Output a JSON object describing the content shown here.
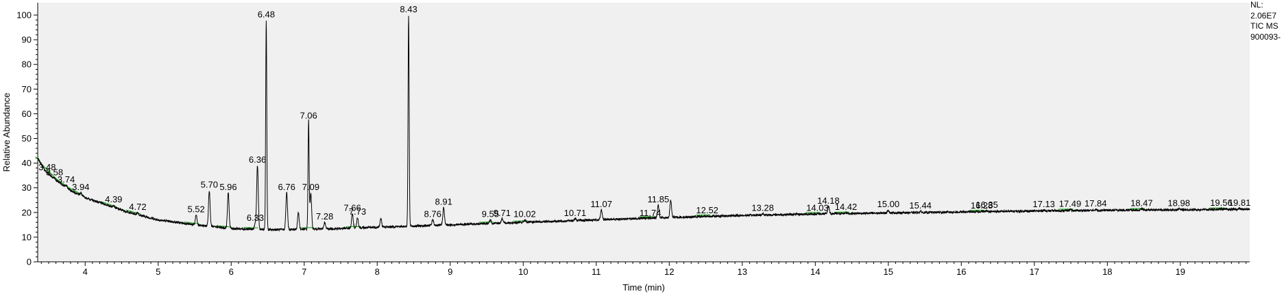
{
  "info_panel": {
    "line1": "NL:",
    "line2": "2.06E7",
    "line3": "TIC  MS",
    "line4": "900093-"
  },
  "colors": {
    "plot_background": "#f0f0f0",
    "trace": "#000000",
    "integration_marks": "#22aa22"
  },
  "chart_data": {
    "type": "line",
    "title": "",
    "xlabel": "Time (min)",
    "ylabel": "Relative Abundance",
    "xlim": [
      3.35,
      19.95
    ],
    "ylim": [
      0,
      105
    ],
    "x_ticks": [
      4,
      5,
      6,
      7,
      8,
      9,
      10,
      11,
      12,
      13,
      14,
      15,
      16,
      17,
      18,
      19
    ],
    "y_ticks": [
      0,
      10,
      20,
      30,
      40,
      50,
      60,
      70,
      80,
      90,
      100
    ],
    "grid": false,
    "baseline": [
      [
        3.35,
        42
      ],
      [
        3.45,
        37
      ],
      [
        3.6,
        33
      ],
      [
        3.8,
        29
      ],
      [
        4.0,
        26
      ],
      [
        4.3,
        23
      ],
      [
        4.6,
        20
      ],
      [
        5.0,
        17
      ],
      [
        5.5,
        15
      ],
      [
        6.0,
        13.5
      ],
      [
        6.5,
        13
      ],
      [
        7.0,
        13.2
      ],
      [
        7.5,
        13.5
      ],
      [
        8.0,
        14
      ],
      [
        8.3,
        14.3
      ],
      [
        8.6,
        14.6
      ],
      [
        9.0,
        15
      ],
      [
        9.5,
        15.5
      ],
      [
        10.0,
        16
      ],
      [
        11.0,
        17
      ],
      [
        12.0,
        18
      ],
      [
        13.0,
        18.8
      ],
      [
        14.0,
        19.4
      ],
      [
        15.0,
        19.8
      ],
      [
        16.0,
        20.2
      ],
      [
        17.0,
        20.6
      ],
      [
        18.0,
        20.9
      ],
      [
        19.0,
        21.1
      ],
      [
        19.95,
        21.3
      ]
    ],
    "peaks": [
      {
        "rt": 3.48,
        "label": "3.48",
        "height": 36
      },
      {
        "rt": 3.58,
        "label": "3.58",
        "height": 34
      },
      {
        "rt": 3.74,
        "label": "3.74",
        "height": 31
      },
      {
        "rt": 3.94,
        "label": "3.94",
        "height": 28
      },
      {
        "rt": 4.39,
        "label": "4.39",
        "height": 23
      },
      {
        "rt": 4.72,
        "label": "4.72",
        "height": 20
      },
      {
        "rt": 5.52,
        "label": "5.52",
        "height": 19
      },
      {
        "rt": 5.7,
        "label": "5.70",
        "height": 29
      },
      {
        "rt": 5.96,
        "label": "5.96",
        "height": 28
      },
      {
        "rt": 6.33,
        "label": "6.33",
        "height": 15.5
      },
      {
        "rt": 6.36,
        "label": "6.36",
        "height": 39
      },
      {
        "rt": 6.48,
        "label": "6.48",
        "height": 98
      },
      {
        "rt": 6.76,
        "label": "6.76",
        "height": 28
      },
      {
        "rt": 7.06,
        "label": "7.06",
        "height": 57
      },
      {
        "rt": 7.09,
        "label": "7.09",
        "height": 28
      },
      {
        "rt": 7.28,
        "label": "7.28",
        "height": 16
      },
      {
        "rt": 7.66,
        "label": "7.66",
        "height": 19.5
      },
      {
        "rt": 7.73,
        "label": "7.73",
        "height": 18
      },
      {
        "rt": 8.43,
        "label": "8.43",
        "height": 100
      },
      {
        "rt": 8.76,
        "label": "8.76",
        "height": 17
      },
      {
        "rt": 8.91,
        "label": "8.91",
        "height": 22
      },
      {
        "rt": 9.55,
        "label": "9.55",
        "height": 17
      },
      {
        "rt": 9.71,
        "label": "9.71",
        "height": 17.5
      },
      {
        "rt": 10.02,
        "label": "10.02",
        "height": 17
      },
      {
        "rt": 10.71,
        "label": "10.71",
        "height": 17.5
      },
      {
        "rt": 11.07,
        "label": "11.07",
        "height": 21
      },
      {
        "rt": 11.74,
        "label": "11.74",
        "height": 17.5
      },
      {
        "rt": 11.85,
        "label": "11.85",
        "height": 23
      },
      {
        "rt": 12.52,
        "label": "12.52",
        "height": 18.5
      },
      {
        "rt": 13.28,
        "label": "13.28",
        "height": 19.5
      },
      {
        "rt": 14.03,
        "label": "14.03",
        "height": 19.5
      },
      {
        "rt": 14.18,
        "label": "14.18",
        "height": 22.5
      },
      {
        "rt": 14.42,
        "label": "14.42",
        "height": 20
      },
      {
        "rt": 15.0,
        "label": "15.00",
        "height": 21
      },
      {
        "rt": 15.44,
        "label": "15.44",
        "height": 20.5
      },
      {
        "rt": 16.28,
        "label": "16.28",
        "height": 20.5
      },
      {
        "rt": 16.35,
        "label": "16.35",
        "height": 20.8
      },
      {
        "rt": 17.13,
        "label": "17.13",
        "height": 21
      },
      {
        "rt": 17.49,
        "label": "17.49",
        "height": 21.2
      },
      {
        "rt": 17.84,
        "label": "17.84",
        "height": 21.3
      },
      {
        "rt": 18.47,
        "label": "18.47",
        "height": 21.5
      },
      {
        "rt": 18.98,
        "label": "18.98",
        "height": 21.5
      },
      {
        "rt": 19.56,
        "label": "19.56",
        "height": 21.6
      },
      {
        "rt": 19.81,
        "label": "19.81",
        "height": 21.6
      }
    ],
    "unlabeled_peaks": [
      {
        "rt": 12.02,
        "height": 25
      },
      {
        "rt": 8.05,
        "height": 17.5
      },
      {
        "rt": 6.92,
        "height": 20
      },
      {
        "rt": 5.1,
        "height": 16
      }
    ],
    "integrated_peaks": [
      "3.48",
      "3.58",
      "3.74",
      "3.94",
      "4.39",
      "4.72",
      "5.52",
      "5.96",
      "6.33",
      "7.09",
      "7.73",
      "9.55",
      "10.02",
      "11.74",
      "12.52",
      "14.03",
      "14.42",
      "16.28",
      "17.49",
      "18.47",
      "19.56"
    ]
  }
}
